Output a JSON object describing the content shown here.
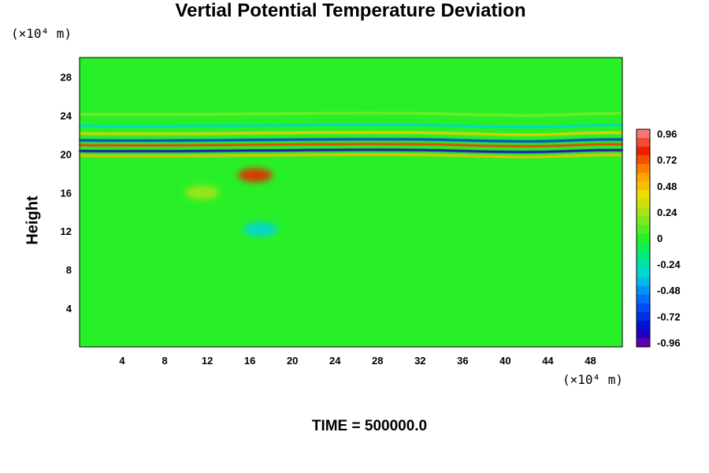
{
  "chart_data": {
    "type": "heatmap",
    "title": "Vertial Potential Temperature Deviation",
    "ylabel": "Height",
    "x_unit": "(×10⁴ m)",
    "y_unit": "(×10⁴ m)",
    "x_ticks": [
      4,
      8,
      12,
      16,
      20,
      24,
      28,
      32,
      36,
      40,
      44,
      48
    ],
    "y_ticks": [
      4,
      8,
      12,
      16,
      20,
      24,
      28
    ],
    "xlim": [
      0,
      51
    ],
    "ylim": [
      0,
      30
    ],
    "colorbar": {
      "range": [
        -1.0,
        1.0
      ],
      "tick_labels": [
        "0.96",
        "0.72",
        "0.48",
        "0.24",
        "0",
        "-0.24",
        "-0.48",
        "-0.72",
        "-0.96"
      ],
      "tick_values": [
        0.96,
        0.72,
        0.48,
        0.24,
        0,
        -0.24,
        -0.48,
        -0.72,
        -0.96
      ],
      "levels": 25
    },
    "features": [
      {
        "kind": "band",
        "y": 24.2,
        "value": 0.15
      },
      {
        "kind": "band",
        "y": 23.0,
        "value": -0.3
      },
      {
        "kind": "band",
        "y": 22.2,
        "value": 0.45
      },
      {
        "kind": "band",
        "y": 21.5,
        "value": -0.7
      },
      {
        "kind": "band",
        "y": 21.0,
        "value": 0.75
      },
      {
        "kind": "band",
        "y": 20.4,
        "value": -0.9
      },
      {
        "kind": "band",
        "y": 19.9,
        "value": 0.5
      },
      {
        "kind": "blob",
        "x": 16.5,
        "y": 17.8,
        "value": 0.8
      },
      {
        "kind": "blob",
        "x": 11.5,
        "y": 16.0,
        "value": 0.25
      },
      {
        "kind": "blob",
        "x": 17.0,
        "y": 12.2,
        "value": -0.35
      }
    ]
  },
  "footer": {
    "time_label": "TIME = 500000.0"
  }
}
